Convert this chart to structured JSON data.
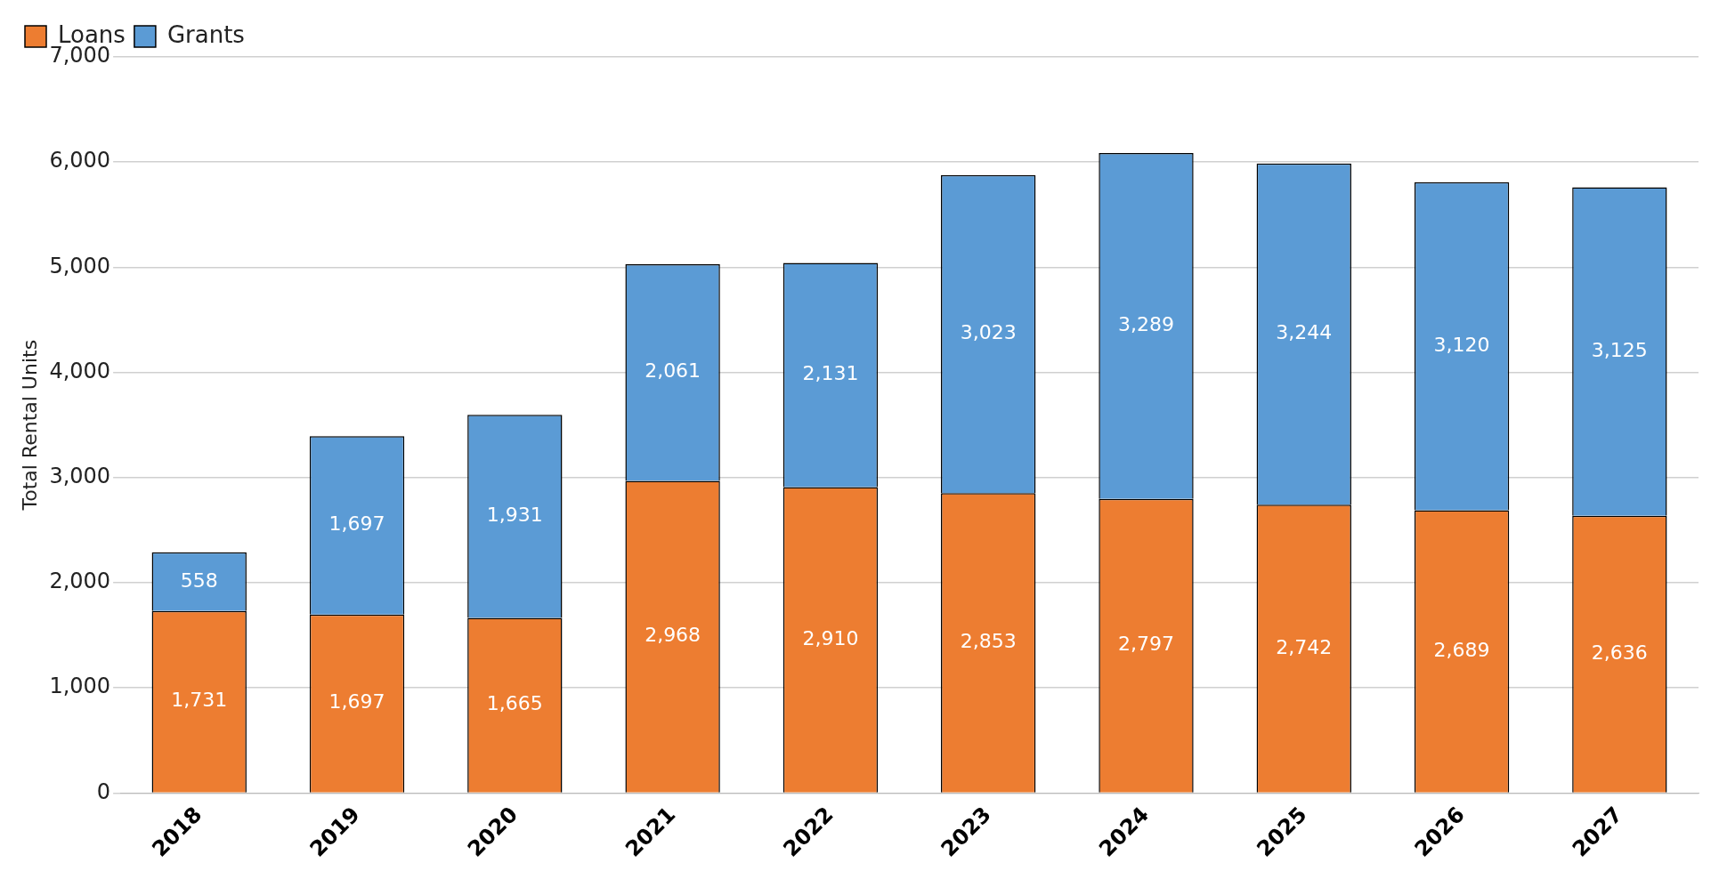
{
  "chart_data": {
    "type": "bar",
    "stacked": true,
    "ylabel": "Total Rental Units",
    "categories": [
      "2018",
      "2019",
      "2020",
      "2021",
      "2022",
      "2023",
      "2024",
      "2025",
      "2026",
      "2027"
    ],
    "series": [
      {
        "name": "Loans",
        "color": "#ed7d31",
        "values": [
          1731,
          1697,
          1665,
          2968,
          2910,
          2853,
          2797,
          2742,
          2689,
          2636
        ],
        "value_labels": [
          "1,731",
          "1,697",
          "1,665",
          "2,968",
          "2,910",
          "2,853",
          "2,797",
          "2,742",
          "2,689",
          "2,636"
        ]
      },
      {
        "name": "Grants",
        "color": "#5b9bd5",
        "values": [
          558,
          1697,
          1931,
          2061,
          2131,
          3023,
          3289,
          3244,
          3120,
          3125
        ],
        "value_labels": [
          "558",
          "1,697",
          "1,931",
          "2,061",
          "2,131",
          "3,023",
          "3,289",
          "3,244",
          "3,120",
          "3,125"
        ]
      }
    ],
    "ylim": [
      0,
      7000
    ],
    "yticks": [
      {
        "value": 0,
        "label": "0"
      },
      {
        "value": 1000,
        "label": "1,000"
      },
      {
        "value": 2000,
        "label": "2,000"
      },
      {
        "value": 3000,
        "label": "3,000"
      },
      {
        "value": 4000,
        "label": "4,000"
      },
      {
        "value": 5000,
        "label": "5,000"
      },
      {
        "value": 6000,
        "label": "6,000"
      },
      {
        "value": 7000,
        "label": "7,000"
      }
    ],
    "grid": "y",
    "legend": "top left"
  }
}
